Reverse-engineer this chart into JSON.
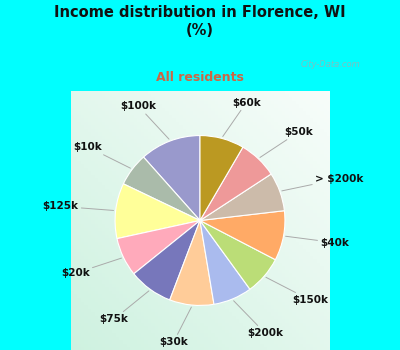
{
  "title": "Income distribution in Florence, WI\n(%)",
  "subtitle": "All residents",
  "title_color": "#111111",
  "subtitle_color": "#cc6644",
  "background_cyan": "#00ffff",
  "watermark": "City-Data.com",
  "slices": [
    {
      "label": "$100k",
      "value": 11,
      "color": "#9999cc"
    },
    {
      "label": "$10k",
      "value": 6,
      "color": "#aabbaa"
    },
    {
      "label": "$125k",
      "value": 10,
      "color": "#ffff99"
    },
    {
      "label": "$20k",
      "value": 7,
      "color": "#ffaabb"
    },
    {
      "label": "$75k",
      "value": 8,
      "color": "#7777bb"
    },
    {
      "label": "$30k",
      "value": 8,
      "color": "#ffcc99"
    },
    {
      "label": "$200k",
      "value": 7,
      "color": "#aabbee"
    },
    {
      "label": "$150k",
      "value": 7,
      "color": "#bbdd77"
    },
    {
      "label": "$40k",
      "value": 9,
      "color": "#ffaa66"
    },
    {
      "label": "> $200k",
      "value": 7,
      "color": "#ccbbaa"
    },
    {
      "label": "$50k",
      "value": 7,
      "color": "#ee9999"
    },
    {
      "label": "$60k",
      "value": 8,
      "color": "#bb9922"
    }
  ],
  "label_fontsize": 7.5,
  "label_color": "#111111"
}
